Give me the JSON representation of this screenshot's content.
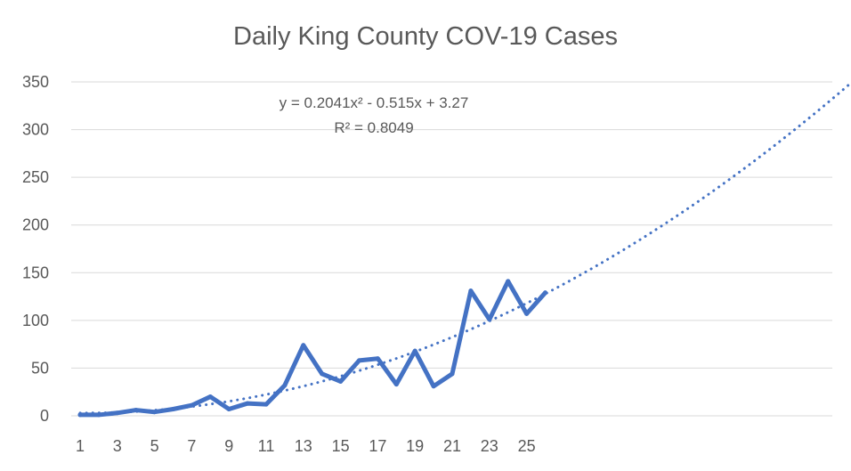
{
  "chart_data": {
    "type": "line",
    "title": "Daily King County COV-19 Cases",
    "xlabel": "",
    "ylabel": "",
    "x_tick_labels": [
      "1",
      "3",
      "5",
      "7",
      "9",
      "11",
      "13",
      "15",
      "17",
      "19",
      "21",
      "23",
      "25"
    ],
    "y_tick_labels": [
      "0",
      "50",
      "100",
      "150",
      "200",
      "250",
      "300",
      "350"
    ],
    "ylim": [
      0,
      350
    ],
    "xlim": [
      1,
      43
    ],
    "grid": "horizontal",
    "legend": "none",
    "series": [
      {
        "x": [
          1,
          2,
          3,
          4,
          5,
          6,
          7,
          8,
          9,
          10,
          11,
          12,
          13,
          14,
          15,
          16,
          17,
          18,
          19,
          20,
          21,
          22,
          23,
          24,
          25,
          26
        ],
        "values": [
          1,
          1,
          3,
          6,
          4,
          7,
          11,
          20,
          7,
          13,
          12,
          32,
          74,
          44,
          36,
          58,
          60,
          33,
          68,
          31,
          44,
          131,
          101,
          141,
          107,
          129
        ],
        "color": "#4472c4"
      }
    ],
    "trendline": {
      "kind": "polynomial",
      "order": 2,
      "coefficients": {
        "a": 0.2041,
        "b": -0.515,
        "c": 3.27
      },
      "x_range": [
        1,
        43
      ],
      "color": "#4472c4",
      "equation": "y = 0.2041x² - 0.515x + 3.27",
      "r_squared": "R² = 0.8049"
    }
  }
}
